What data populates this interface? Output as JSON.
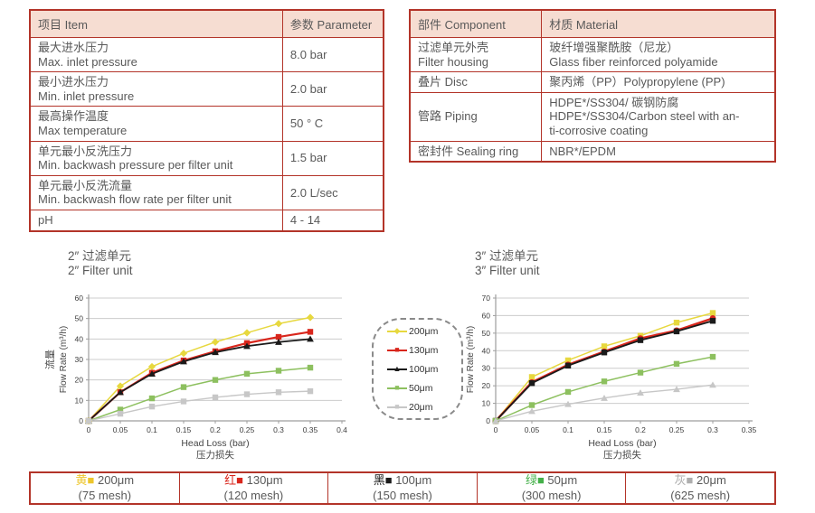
{
  "colors": {
    "table_border": "#b33429",
    "header_bg": "#f6ddd2",
    "text": "#595959",
    "grid": "#cccccc",
    "axis": "#9e9e9e",
    "tick_text": "#3d3d3d"
  },
  "spec_table": {
    "headers": [
      "项目 Item",
      "参数 Parameter"
    ],
    "rows": [
      {
        "item": "最大进水压力\nMax. inlet pressure",
        "param": "8.0 bar"
      },
      {
        "item": "最小进水压力\nMin. inlet pressure",
        "param": "2.0 bar"
      },
      {
        "item": "最高操作温度\nMax temperature",
        "param": "50 ° C"
      },
      {
        "item": "单元最小反洗压力\nMin. backwash pressure per filter unit",
        "param": "1.5 bar"
      },
      {
        "item": "单元最小反洗流量\nMin. backwash flow rate per filter unit",
        "param": "2.0 L/sec"
      },
      {
        "item": "pH",
        "param": "4 - 14"
      }
    ]
  },
  "material_table": {
    "headers": [
      "部件 Component",
      "材质 Material"
    ],
    "rows": [
      {
        "component": "过滤单元外壳\nFilter housing",
        "material": "玻纤增强聚酰胺（尼龙）\nGlass fiber reinforced polyamide"
      },
      {
        "component": "叠片 Disc",
        "material": "聚丙烯（PP）Polypropylene (PP)"
      },
      {
        "component": "管路 Piping",
        "material": "HDPE*/SS304/ 碳钢防腐\nHDPE*/SS304/Carbon steel with an-\nti-corrosive coating"
      },
      {
        "component": "密封件 Sealing ring",
        "material": "NBR*/EPDM"
      }
    ]
  },
  "chart_data": [
    {
      "type": "line",
      "title_cn": "2″ 过滤单元",
      "title_en": "2″ Filter unit",
      "ylabel_cn": "流量",
      "ylabel_en": "Flow Rate (m³/h)",
      "xlabel_en": "Head Loss (bar)",
      "xlabel_cn": "压力损失",
      "ylim": [
        0,
        60
      ],
      "ytick_step": 10,
      "xlim": [
        0,
        0.4
      ],
      "xticks": [
        "0",
        "0.05",
        "0.1",
        "0.15",
        "0.2",
        "0.25",
        "0.3",
        "0.35",
        "0.4"
      ],
      "x": [
        0,
        0.05,
        0.1,
        0.15,
        0.2,
        0.25,
        0.3,
        0.35
      ],
      "grid": true,
      "series": [
        {
          "name": "200μm",
          "color": "#e7d83f",
          "marker": "diamond",
          "width": 1.5,
          "values": [
            0,
            17,
            26.5,
            33,
            38.5,
            43,
            47.5,
            50.5
          ]
        },
        {
          "name": "130μm",
          "color": "#d9261c",
          "marker": "square",
          "width": 2.2,
          "values": [
            0,
            14,
            23.5,
            29.5,
            34,
            38,
            41,
            43.5
          ]
        },
        {
          "name": "100μm",
          "color": "#1a1a1a",
          "marker": "triangle",
          "width": 1.8,
          "values": [
            0,
            14,
            23,
            29,
            33.5,
            36.5,
            38.5,
            40
          ]
        },
        {
          "name": "50μm",
          "color": "#8dc05f",
          "marker": "square",
          "width": 1.5,
          "values": [
            0,
            5.5,
            11,
            16.5,
            20,
            23,
            24.5,
            26
          ]
        },
        {
          "name": "20μm",
          "color": "#c7c7c7",
          "marker": "square",
          "width": 1.4,
          "values": [
            0,
            3.5,
            7,
            9.5,
            11.5,
            13,
            14,
            14.5
          ]
        }
      ]
    },
    {
      "type": "line",
      "title_cn": "3″ 过滤单元",
      "title_en": "3″ Filter unit",
      "ylabel_cn": "流量",
      "ylabel_en": "Flow Rate (m³/h)",
      "xlabel_en": "Head Loss (bar)",
      "xlabel_cn": "压力损失",
      "ylim": [
        0,
        70
      ],
      "ytick_step": 10,
      "xlim": [
        0,
        0.35
      ],
      "xticks": [
        "0",
        "0.05",
        "0.1",
        "0.15",
        "0.2",
        "0.25",
        "0.3",
        "0.35"
      ],
      "x": [
        0,
        0.05,
        0.1,
        0.15,
        0.2,
        0.25,
        0.3
      ],
      "grid": true,
      "series": [
        {
          "name": "200μm",
          "color": "#e7d83f",
          "marker": "square",
          "width": 1.5,
          "values": [
            0,
            25,
            34.5,
            42.5,
            48.5,
            56,
            61.5
          ]
        },
        {
          "name": "130μm",
          "color": "#d9261c",
          "marker": "circle",
          "width": 2.4,
          "values": [
            0,
            22,
            32,
            39.5,
            47,
            51.5,
            58.5
          ]
        },
        {
          "name": "100μm",
          "color": "#1a1a1a",
          "marker": "square",
          "width": 1.8,
          "values": [
            0,
            21.5,
            31.5,
            39,
            46,
            51,
            57
          ]
        },
        {
          "name": "50μm",
          "color": "#8dc05f",
          "marker": "square",
          "width": 1.5,
          "values": [
            0,
            9,
            16.5,
            22.5,
            27.5,
            32.5,
            36.5
          ]
        },
        {
          "name": "20μm",
          "color": "#c7c7c7",
          "marker": "triangle",
          "width": 1.4,
          "values": [
            0,
            5.5,
            9.5,
            13,
            16,
            18,
            20.5
          ]
        }
      ]
    }
  ],
  "legend_box": {
    "items": [
      {
        "label": "200μm",
        "color": "#e7d83f",
        "marker": "diamond"
      },
      {
        "label": "130μm",
        "color": "#d9261c",
        "marker": "square"
      },
      {
        "label": "100μm",
        "color": "#1a1a1a",
        "marker": "triangle"
      },
      {
        "label": "50μm",
        "color": "#8dc05f",
        "marker": "square"
      },
      {
        "label": "20μm",
        "color": "#c7c7c7",
        "marker": "square"
      }
    ]
  },
  "bottom_legend": {
    "cells": [
      {
        "cn": "黄",
        "color": "#edc62c",
        "label": "200μm",
        "mesh": "(75 mesh)"
      },
      {
        "cn": "红",
        "color": "#d9261c",
        "label": "130μm",
        "mesh": "(120 mesh)"
      },
      {
        "cn": "黑",
        "color": "#1a1a1a",
        "label": "100μm",
        "mesh": "(150 mesh)"
      },
      {
        "cn": "绿",
        "color": "#44b049",
        "label": "50μm",
        "mesh": "(300 mesh)"
      },
      {
        "cn": "灰",
        "color": "#aeaeae",
        "label": "20μm",
        "mesh": "(625 mesh)"
      }
    ]
  }
}
